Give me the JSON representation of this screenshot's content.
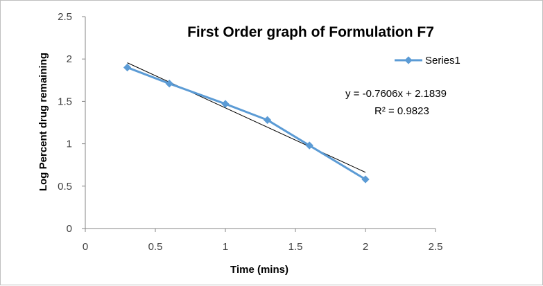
{
  "chart_data": {
    "type": "scatter",
    "title": "First Order graph of Formulation F7",
    "xlabel": "Time (mins)",
    "ylabel": "Log Percent drug remaining",
    "xlim": [
      0,
      2.5
    ],
    "ylim": [
      0,
      2.5
    ],
    "x_ticks": [
      0,
      0.5,
      1,
      1.5,
      2,
      2.5
    ],
    "y_ticks": [
      0,
      0.5,
      1,
      1.5,
      2,
      2.5
    ],
    "x_tick_labels": [
      "0",
      "0.5",
      "1",
      "1.5",
      "2",
      "2.5"
    ],
    "y_tick_labels": [
      "0",
      "0.5",
      "1",
      "1.5",
      "2",
      "2.5"
    ],
    "grid": false,
    "legend_position": "right",
    "series": [
      {
        "name": "Series1",
        "color": "#5B9BD5",
        "marker": "diamond",
        "x": [
          0.3,
          0.6,
          1.0,
          1.3,
          1.6,
          2.0
        ],
        "y": [
          1.9,
          1.71,
          1.47,
          1.28,
          0.98,
          0.58
        ]
      }
    ],
    "trendline": {
      "type": "linear",
      "slope": -0.7606,
      "intercept": 2.1839,
      "x_range": [
        0.3,
        2.0
      ],
      "color": "#000000",
      "equation_label": "y = -0.7606x + 2.1839",
      "r2_label": "R² = 0.9823"
    }
  }
}
